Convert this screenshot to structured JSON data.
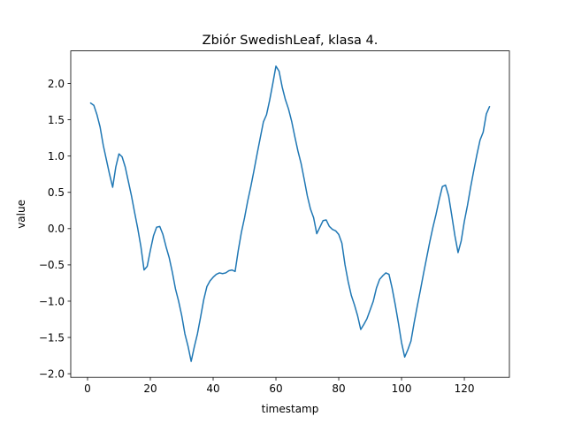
{
  "chart_data": {
    "type": "line",
    "title": "Zbiór SwedishLeaf, klasa 4.",
    "xlabel": "timestamp",
    "ylabel": "value",
    "xlim": [
      -5.35,
      134.35
    ],
    "ylim": [
      -2.05,
      2.45
    ],
    "xticks": [
      0,
      20,
      40,
      60,
      80,
      100,
      120
    ],
    "yticks": [
      -2.0,
      -1.5,
      -1.0,
      -0.5,
      0.0,
      0.5,
      1.0,
      1.5,
      2.0
    ],
    "grid": false,
    "line_color": "#1f77b4",
    "series": [
      {
        "x": [
          1,
          2,
          3,
          4,
          5,
          6,
          7,
          8,
          9,
          10,
          11,
          12,
          13,
          14,
          15,
          16,
          17,
          18,
          19,
          20,
          21,
          22,
          23,
          24,
          25,
          26,
          27,
          28,
          29,
          30,
          31,
          32,
          33,
          34,
          35,
          36,
          37,
          38,
          39,
          40,
          41,
          42,
          43,
          44,
          45,
          46,
          47,
          48,
          49,
          50,
          51,
          52,
          53,
          54,
          55,
          56,
          57,
          58,
          59,
          60,
          61,
          62,
          63,
          64,
          65,
          66,
          67,
          68,
          69,
          70,
          71,
          72,
          73,
          74,
          75,
          76,
          77,
          78,
          79,
          80,
          81,
          82,
          83,
          84,
          85,
          86,
          87,
          88,
          89,
          90,
          91,
          92,
          93,
          94,
          95,
          96,
          97,
          98,
          99,
          100,
          101,
          102,
          103,
          104,
          105,
          106,
          107,
          108,
          109,
          110,
          111,
          112,
          113,
          114,
          115,
          116,
          117,
          118,
          119,
          120,
          121,
          122,
          123,
          124,
          125,
          126,
          127,
          128
        ],
        "values": [
          1.73,
          1.7,
          1.57,
          1.4,
          1.15,
          0.95,
          0.75,
          0.57,
          0.85,
          1.03,
          0.99,
          0.85,
          0.65,
          0.45,
          0.22,
          0.0,
          -0.25,
          -0.57,
          -0.52,
          -0.3,
          -0.1,
          0.02,
          0.03,
          -0.08,
          -0.25,
          -0.4,
          -0.6,
          -0.83,
          -1.0,
          -1.2,
          -1.45,
          -1.62,
          -1.83,
          -1.63,
          -1.45,
          -1.22,
          -0.98,
          -0.8,
          -0.72,
          -0.67,
          -0.63,
          -0.61,
          -0.62,
          -0.61,
          -0.58,
          -0.57,
          -0.59,
          -0.3,
          -0.05,
          0.15,
          0.38,
          0.58,
          0.8,
          1.03,
          1.25,
          1.47,
          1.57,
          1.77,
          2.0,
          2.24,
          2.17,
          1.95,
          1.78,
          1.65,
          1.48,
          1.27,
          1.07,
          0.9,
          0.68,
          0.45,
          0.27,
          0.15,
          -0.07,
          0.02,
          0.11,
          0.12,
          0.03,
          -0.01,
          -0.03,
          -0.08,
          -0.2,
          -0.5,
          -0.73,
          -0.92,
          -1.05,
          -1.2,
          -1.39,
          -1.32,
          -1.24,
          -1.12,
          -1.0,
          -0.82,
          -0.7,
          -0.65,
          -0.61,
          -0.63,
          -0.82,
          -1.05,
          -1.3,
          -1.57,
          -1.77,
          -1.67,
          -1.55,
          -1.3,
          -1.07,
          -0.85,
          -0.62,
          -0.4,
          -0.18,
          0.02,
          0.2,
          0.4,
          0.58,
          0.6,
          0.45,
          0.18,
          -0.1,
          -0.33,
          -0.17,
          0.1,
          0.32,
          0.57,
          0.8,
          1.02,
          1.22,
          1.33,
          1.58,
          1.68
        ]
      }
    ]
  }
}
